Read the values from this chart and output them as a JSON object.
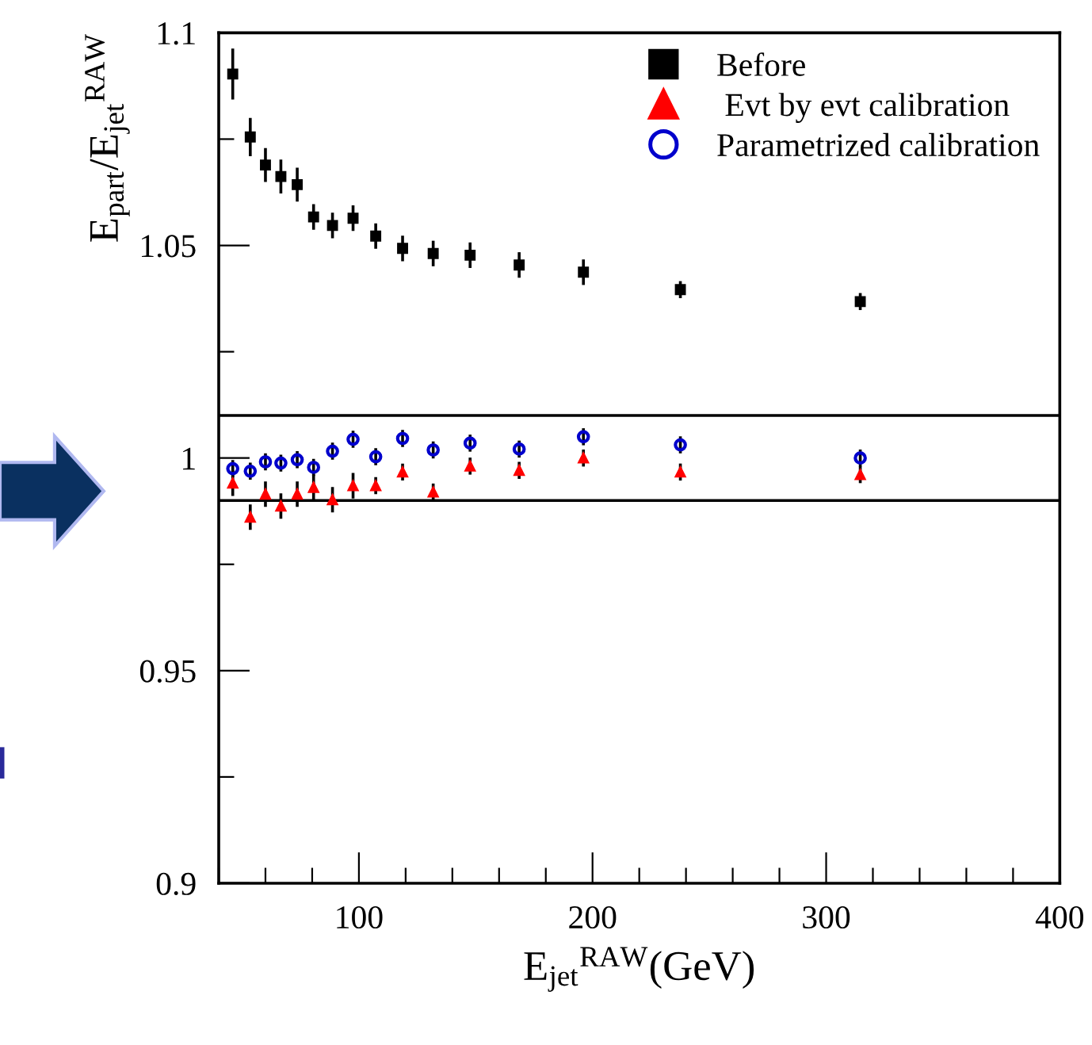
{
  "chart_data": {
    "type": "scatter",
    "ylabel": "E$_{part}$/E$_{jet}$$^{RAW}$",
    "xlabel": "E$_{jet}$$^{RAW}$(GeV)",
    "x": [
      46,
      53.5,
      60,
      66.6,
      73.6,
      80.6,
      88.7,
      97.5,
      107.2,
      118.7,
      131.8,
      147.6,
      168.6,
      196.1,
      237.6,
      314.6
    ],
    "series": [
      {
        "name": "Before",
        "color": "#000000",
        "marker": "square",
        "values": [
          1.0903,
          1.0755,
          1.0689,
          1.0662,
          1.0643,
          1.0567,
          1.0547,
          1.0564,
          1.0522,
          1.0493,
          1.0481,
          1.0477,
          1.0454,
          1.0437,
          1.0396,
          1.0368
        ],
        "errors": [
          0.006,
          0.0045,
          0.004,
          0.004,
          0.004,
          0.003,
          0.003,
          0.003,
          0.003,
          0.003,
          0.003,
          0.003,
          0.003,
          0.003,
          0.002,
          0.002
        ]
      },
      {
        "name": " Evt by evt calibration",
        "color": "#ff0000",
        "marker": "triangle",
        "values": [
          0.9941,
          0.9861,
          0.9915,
          0.9887,
          0.9915,
          0.9931,
          0.9902,
          0.9935,
          0.9935,
          0.9967,
          0.992,
          0.9981,
          0.9971,
          1.0,
          0.9967,
          0.9961
        ],
        "errors": [
          0.003,
          0.003,
          0.003,
          0.003,
          0.003,
          0.003,
          0.003,
          0.003,
          0.002,
          0.002,
          0.002,
          0.002,
          0.002,
          0.002,
          0.002,
          0.002
        ]
      },
      {
        "name": "Parametrized calibration",
        "color": "#0000cc",
        "marker": "circle",
        "values": [
          0.9975,
          0.9969,
          0.9991,
          0.9988,
          0.9996,
          0.9978,
          1.0016,
          1.0044,
          1.0003,
          1.0046,
          1.0019,
          1.0035,
          1.0021,
          1.005,
          1.0031,
          1.0
        ],
        "errors": [
          0.002,
          0.002,
          0.002,
          0.002,
          0.002,
          0.002,
          0.002,
          0.002,
          0.002,
          0.002,
          0.002,
          0.002,
          0.002,
          0.002,
          0.002,
          0.002
        ]
      }
    ],
    "xlim": [
      40,
      400
    ],
    "xticks": [
      {
        "value": 40,
        "label": null
      },
      {
        "value": 60,
        "label": null
      },
      {
        "value": 80,
        "label": null
      },
      100,
      {
        "value": 120,
        "label": null
      },
      {
        "value": 140,
        "label": null
      },
      {
        "value": 160,
        "label": null
      },
      {
        "value": 180,
        "label": null
      },
      200,
      {
        "value": 220,
        "label": null
      },
      {
        "value": 240,
        "label": null
      },
      {
        "value": 260,
        "label": null
      },
      {
        "value": 280,
        "label": null
      },
      300,
      {
        "value": 320,
        "label": null
      },
      {
        "value": 340,
        "label": null
      },
      {
        "value": 360,
        "label": null
      },
      {
        "value": 380,
        "label": null
      },
      400
    ],
    "ylim": [
      0.9,
      1.1
    ],
    "yticks": [
      0.9,
      {
        "value": 0.925,
        "label": null
      },
      0.95,
      {
        "value": 0.975,
        "label": null
      },
      1,
      {
        "value": 1.025,
        "label": null
      },
      1.05,
      {
        "value": 1.075,
        "label": null
      },
      1.1
    ],
    "ref_lines": [
      {
        "axis": "y",
        "value": 1.01,
        "color": "#000000"
      },
      {
        "axis": "y",
        "value": 0.99,
        "color": "#000000"
      }
    ],
    "legend": "top right",
    "grid": false
  }
}
